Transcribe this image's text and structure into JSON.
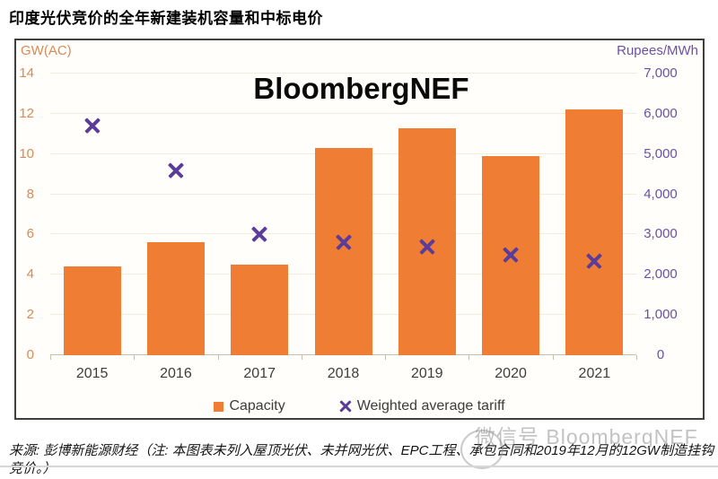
{
  "page": {
    "title": "印度光伏竞价的全年新建装机容量和中标电价",
    "source_note": "来源: 彭博新能源财经（注: 本图表未列入屋顶光伏、未并网光伏、EPC工程、承包合同和2019年12月的12GW制造挂钩竞价。）",
    "watermark": "微信号 BloombergNEF"
  },
  "chart_data": {
    "type": "bar",
    "brand": "BloombergNEF",
    "categories": [
      "2015",
      "2016",
      "2017",
      "2018",
      "2019",
      "2020",
      "2021"
    ],
    "series": [
      {
        "name": "Capacity",
        "type": "bar",
        "axis": "left",
        "unit": "GW(AC)",
        "values": [
          4.4,
          5.6,
          4.5,
          10.3,
          11.3,
          9.9,
          12.2
        ],
        "color": "#ef7d33"
      },
      {
        "name": "Weighted average tariff",
        "type": "scatter-x",
        "axis": "right",
        "unit": "Rupees/MWh",
        "values": [
          5700,
          4600,
          3000,
          2800,
          2700,
          2500,
          2350
        ],
        "color": "#5b3d99"
      }
    ],
    "left_axis": {
      "label": "GW(AC)",
      "min": 0,
      "max": 14,
      "step": 2,
      "ticks": [
        "0",
        "2",
        "4",
        "6",
        "8",
        "10",
        "12",
        "14"
      ],
      "color": "#d98a55"
    },
    "right_axis": {
      "label": "Rupees/MWh",
      "min": 0,
      "max": 7000,
      "step": 1000,
      "ticks": [
        "0",
        "1,000",
        "2,000",
        "3,000",
        "4,000",
        "5,000",
        "6,000",
        "7,000"
      ],
      "color": "#6a51a4"
    },
    "legend": [
      {
        "label": "Capacity",
        "marker": "square",
        "color": "#ef7d33"
      },
      {
        "label": "Weighted average tariff",
        "marker": "x",
        "color": "#5b3d99"
      }
    ],
    "grid": true,
    "legend_position": "bottom"
  }
}
